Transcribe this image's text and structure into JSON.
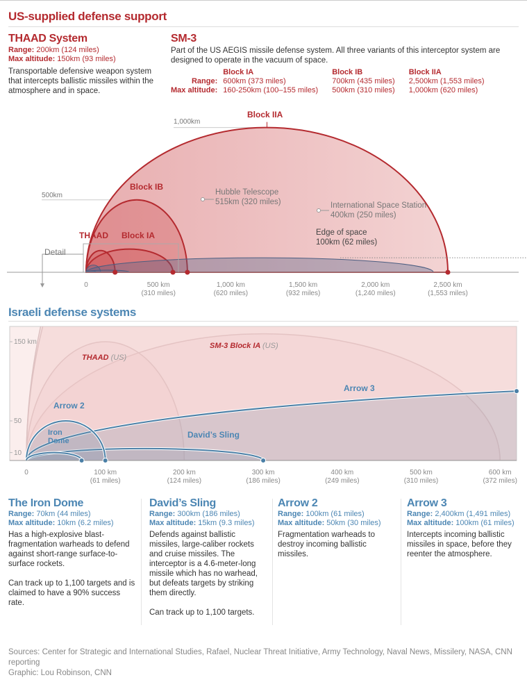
{
  "us": {
    "title": "US-supplied defense support",
    "thaad": {
      "title": "THAAD System",
      "range_label": "Range:",
      "range_value": "200km (124 miles)",
      "alt_label": "Max altitude:",
      "alt_value": "150km (93 miles)",
      "desc": "Transportable defensive weapon system that intercepts ballistic missiles within the atmosphere and in space."
    },
    "sm3": {
      "title": "SM-3",
      "desc": "Part of the US AEGIS missile defense system. All three variants of this interceptor system are designed to operate in the vacuum of space.",
      "range_label": "Range:",
      "alt_label": "Max altitude:",
      "blocks": [
        {
          "name": "Block IA",
          "range": "600km (373 miles)",
          "alt": "160-250km (100–155 miles)"
        },
        {
          "name": "Block IB",
          "range": "700km (435 miles)",
          "alt": "500km (310 miles)"
        },
        {
          "name": "Block IIA",
          "range": "2,500km (1,553 miles)",
          "alt": "1,000km (620 miles)"
        }
      ]
    }
  },
  "top_chart": {
    "y_labels": [
      "1,000km",
      "500km"
    ],
    "arc_labels": {
      "block_iia": "Block IIA",
      "block_ib": "Block IB",
      "thaad": "THAAD",
      "block_ia": "Block IA"
    },
    "hubble": {
      "name": "Hubble Telescope",
      "value": "515km (320 miles)"
    },
    "iss": {
      "name": "International Space Station",
      "value": "400km (250 miles)"
    },
    "edge": {
      "name": "Edge of space",
      "value": "100km (62 miles)"
    },
    "detail_label": "Detail",
    "x_ticks": [
      {
        "km": "0",
        "miles": ""
      },
      {
        "km": "500 km",
        "miles": "(310 miles)"
      },
      {
        "km": "1,000 km",
        "miles": "(620 miles)"
      },
      {
        "km": "1,500 km",
        "miles": "(932 miles)"
      },
      {
        "km": "2,000 km",
        "miles": "(1,240 miles)"
      },
      {
        "km": "2,500 km",
        "miles": "(1,553 miles)"
      }
    ]
  },
  "israel": {
    "title": "Israeli defense systems",
    "y_ticks": [
      "150 km",
      "50",
      "10"
    ],
    "labels": {
      "thaad": "THAAD",
      "thaad_us": "(US)",
      "sm3": "SM-3 Block IA",
      "sm3_us": "(US)",
      "arrow3": "Arrow 3",
      "arrow2": "Arrow 2",
      "iron_dome_1": "Iron",
      "iron_dome_2": "Dome",
      "davids_sling": "David’s Sling"
    },
    "x_ticks": [
      {
        "km": "0",
        "miles": ""
      },
      {
        "km": "100 km",
        "miles": "(61 miles)"
      },
      {
        "km": "200 km",
        "miles": "(124 miles)"
      },
      {
        "km": "300 km",
        "miles": "(186 miles)"
      },
      {
        "km": "400 km",
        "miles": "(249 miles)"
      },
      {
        "km": "500 km",
        "miles": "(310 miles)"
      },
      {
        "km": "600 km",
        "miles": "(372 miles)"
      }
    ],
    "cards": [
      {
        "title": "The Iron Dome",
        "range_label": "Range:",
        "range": "70km (44 miles)",
        "alt_label": "Max altitude:",
        "alt": "10km (6.2 miles)",
        "desc": "Has a high-explosive blast-fragmentation warheads to defend against short-range surface-to-surface rockets.",
        "desc2": "Can track up to 1,100 targets and is claimed to have a 90% success rate."
      },
      {
        "title": "David’s Sling",
        "range_label": "Range:",
        "range": "300km (186 miles)",
        "alt_label": "Max altitude:",
        "alt": "15km (9.3 miles)",
        "desc": "Defends against ballistic missiles, large-caliber rockets and cruise missiles. The interceptor is a 4.6-meter-long missile which has no warhead, but defeats targets by striking them directly.",
        "desc2": "Can track up to 1,100 targets."
      },
      {
        "title": "Arrow 2",
        "range_label": "Range:",
        "range": "100km (61 miles)",
        "alt_label": "Max altitude:",
        "alt": "50km (30 miles)",
        "desc": "Fragmentation warheads to destroy incoming ballistic missiles.",
        "desc2": ""
      },
      {
        "title": "Arrow 3",
        "range_label": "Range:",
        "range": "2,400km (1,491 miles)",
        "alt_label": "Max altitude:",
        "alt": "100km (61 miles)",
        "desc": "Intercepts incoming ballistic missiles in space, before they reenter the atmosphere.",
        "desc2": ""
      }
    ]
  },
  "footer": {
    "sources": "Sources: Center for Strategic and International Studies, Rafael, Nuclear Threat Initiative, Army Technology, Naval News, Missilery, NASA, CNN reporting",
    "credit": "Graphic: Lou Robinson, CNN"
  },
  "colors": {
    "us_red": "#b42a2f",
    "israel_blue": "#4c86b3",
    "us_fill": "#eab9ba",
    "israel_fill": "#c9d2de"
  },
  "chart_data": [
    {
      "type": "area",
      "xlabel": "",
      "ylabel": "",
      "xlim": [
        0,
        3000
      ],
      "ylim": [
        0,
        1000
      ],
      "x_ticks": [
        0,
        500,
        1000,
        1500,
        2000,
        2500
      ],
      "series": [
        {
          "name": "Block IIA",
          "range_km": 2500,
          "max_altitude_km": 1000,
          "group": "us"
        },
        {
          "name": "Block IB",
          "range_km": 700,
          "max_altitude_km": 500,
          "group": "us"
        },
        {
          "name": "Block IA",
          "range_km": 600,
          "max_altitude_km": 160,
          "group": "us"
        },
        {
          "name": "THAAD",
          "range_km": 200,
          "max_altitude_km": 150,
          "group": "us"
        },
        {
          "range_km": 2400,
          "max_altitude_km": 100,
          "group": "israel"
        },
        {
          "range_km": 300,
          "max_altitude_km": 15,
          "group": "israel"
        },
        {
          "range_km": 100,
          "max_altitude_km": 50,
          "group": "israel"
        },
        {
          "range_km": 70,
          "max_altitude_km": 10,
          "group": "israel"
        }
      ],
      "reference_lines": [
        {
          "name": "Edge of space",
          "altitude_km": 100
        }
      ],
      "reference_points": [
        {
          "name": "Hubble Telescope",
          "altitude_km": 515
        },
        {
          "name": "International Space Station",
          "altitude_km": 400
        }
      ]
    },
    {
      "type": "area",
      "xlim": [
        0,
        620
      ],
      "ylim": [
        0,
        165
      ],
      "x_ticks": [
        0,
        100,
        200,
        300,
        400,
        500,
        600
      ],
      "y_ticks": [
        10,
        50,
        150
      ],
      "series": [
        {
          "name": "SM-3 Block IA",
          "range_km": 600,
          "max_altitude_km": 160,
          "group": "us"
        },
        {
          "name": "THAAD",
          "range_km": 200,
          "max_altitude_km": 150,
          "group": "us"
        },
        {
          "range_km": 700,
          "max_altitude_km": 500,
          "group": "us"
        },
        {
          "range_km": 2500,
          "max_altitude_km": 1000,
          "group": "us"
        },
        {
          "name": "Arrow 3",
          "range_km": 2400,
          "max_altitude_km": 100,
          "group": "israel"
        },
        {
          "name": "David’s Sling",
          "range_km": 300,
          "max_altitude_km": 15,
          "group": "israel"
        },
        {
          "name": "Arrow 2",
          "range_km": 100,
          "max_altitude_km": 50,
          "group": "israel"
        },
        {
          "name": "Iron Dome",
          "range_km": 70,
          "max_altitude_km": 10,
          "group": "israel"
        }
      ]
    }
  ]
}
